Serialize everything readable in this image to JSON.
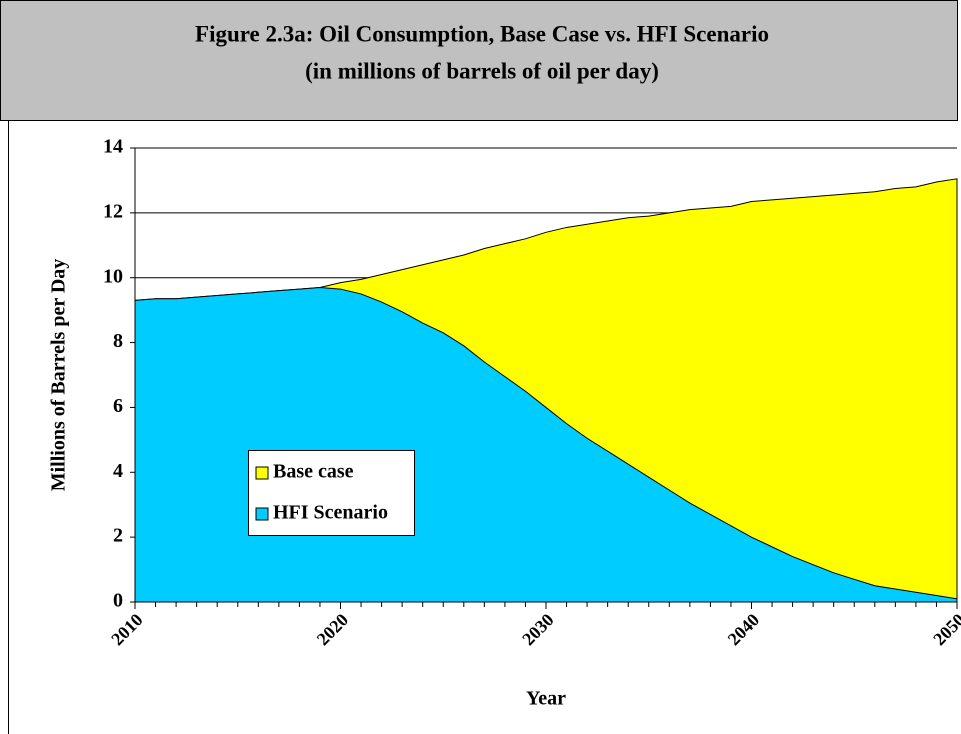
{
  "chart_data": {
    "type": "area",
    "title": "Figure 2.3a: Oil Consumption, Base Case vs. HFI Scenario",
    "subtitle": "(in millions of barrels of oil per day)",
    "x_label": "Year",
    "y_label": "Millions of Barrels per Day",
    "x": [
      2010,
      2011,
      2012,
      2013,
      2014,
      2015,
      2016,
      2017,
      2018,
      2019,
      2020,
      2021,
      2022,
      2023,
      2024,
      2025,
      2026,
      2027,
      2028,
      2029,
      2030,
      2031,
      2032,
      2033,
      2034,
      2035,
      2036,
      2037,
      2038,
      2039,
      2040,
      2041,
      2042,
      2043,
      2044,
      2045,
      2046,
      2047,
      2048,
      2049,
      2050
    ],
    "series": [
      {
        "name": "Base case",
        "color": "#ffff00",
        "values": [
          9.3,
          9.35,
          9.35,
          9.4,
          9.45,
          9.5,
          9.55,
          9.6,
          9.65,
          9.7,
          9.85,
          9.95,
          10.1,
          10.25,
          10.4,
          10.55,
          10.7,
          10.9,
          11.05,
          11.2,
          11.4,
          11.55,
          11.65,
          11.75,
          11.85,
          11.9,
          12.0,
          12.1,
          12.15,
          12.2,
          12.35,
          12.4,
          12.45,
          12.5,
          12.55,
          12.6,
          12.65,
          12.75,
          12.8,
          12.95,
          13.05
        ]
      },
      {
        "name": "HFI Scenario",
        "color": "#00ccff",
        "values": [
          9.3,
          9.35,
          9.35,
          9.4,
          9.45,
          9.5,
          9.55,
          9.6,
          9.65,
          9.7,
          9.65,
          9.5,
          9.25,
          8.95,
          8.6,
          8.3,
          7.9,
          7.4,
          6.95,
          6.5,
          6.0,
          5.5,
          5.05,
          4.65,
          4.25,
          3.85,
          3.45,
          3.05,
          2.7,
          2.35,
          2.0,
          1.7,
          1.4,
          1.15,
          0.9,
          0.7,
          0.5,
          0.4,
          0.3,
          0.2,
          0.1
        ]
      }
    ],
    "xlim": [
      2010,
      2050
    ],
    "xticks": [
      2010,
      2020,
      2030,
      2040,
      2050
    ],
    "ylim": [
      0,
      14
    ],
    "yticks": [
      0,
      2,
      4,
      6,
      8,
      10,
      12,
      14
    ],
    "grid": true
  }
}
